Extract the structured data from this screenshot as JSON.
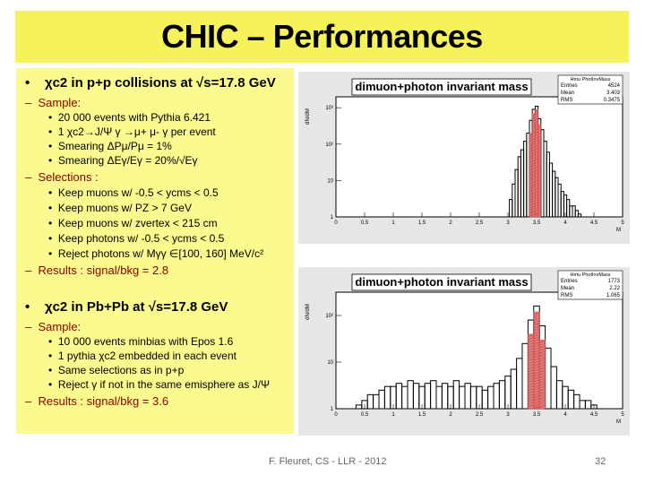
{
  "title": "CHIC – Performances",
  "pp": {
    "heading": "χc2 in p+p collisions at √s=17.8 GeV",
    "sample_label": "Sample:",
    "sample_items": [
      "20 000 events with Pythia 6.421",
      "1 χc2→J/Ψ γ →μ+ μ- γ per event",
      "Smearing ΔPμ/Pμ = 1%",
      "Smearing ΔEγ/Eγ = 20%/√Eγ"
    ],
    "selections_label": "Selections :",
    "selection_items": [
      "Keep muons w/ -0.5 < ycms < 0.5",
      "Keep muons w/ PZ > 7 GeV",
      "Keep muons w/ zvertex < 215 cm",
      "Keep photons w/ -0.5 < ycms < 0.5",
      "Reject photons w/ Mγγ ∈[100, 160] MeV/c²"
    ],
    "results": "Results : signal/bkg = 2.8"
  },
  "pbpb": {
    "heading": "χc2 in Pb+Pb at √s=17.8 GeV",
    "sample_label": "Sample:",
    "sample_items": [
      "10 000 events minbias with Epos 1.6",
      "1 pythia χc2 embedded in each event",
      "Same selections as in p+p",
      "Reject γ if not in the same emisphere as J/Ψ"
    ],
    "results": "Results : signal/bkg = 3.6"
  },
  "chart_data": [
    {
      "type": "bar",
      "title": "dimuon+photon invariant mass",
      "ylabel": "dN/dM",
      "xlabel": "M",
      "log_y": true,
      "xlim": [
        0,
        5
      ],
      "x_ticks": [
        "0",
        "0.5",
        "1",
        "1.5",
        "2",
        "2.5",
        "3",
        "3.5",
        "4",
        "4.5",
        "5"
      ],
      "y_ticks": [
        "1",
        "10",
        "10²",
        "10³"
      ],
      "stats": {
        "name": "Hmu PhotInvMass",
        "rows": [
          [
            "Entries",
            "4524"
          ],
          [
            "Mean",
            "3.403"
          ],
          [
            "RMS",
            "0.3475"
          ]
        ]
      },
      "colors": {
        "background": "#000000",
        "signal": "#e06060"
      },
      "x": [
        3.05,
        3.1,
        3.15,
        3.2,
        3.25,
        3.3,
        3.35,
        3.4,
        3.45,
        3.5,
        3.55,
        3.6,
        3.65,
        3.7,
        3.75,
        3.8,
        3.85,
        3.9,
        3.95,
        4.0,
        4.05,
        4.1,
        4.15,
        4.2,
        4.25,
        4.3,
        4.35,
        4.4
      ],
      "series": [
        {
          "values": [
            3,
            8,
            20,
            45,
            70,
            120,
            200,
            450,
            900,
            1100,
            500,
            250,
            120,
            60,
            30,
            18,
            12,
            8,
            5,
            4,
            3,
            2,
            2,
            1.5,
            1.2,
            1,
            1,
            1
          ]
        },
        {
          "values": [
            0,
            0,
            0,
            0,
            0,
            0,
            0,
            200,
            700,
            900,
            350,
            0,
            0,
            0,
            0,
            0,
            0,
            0,
            0,
            0,
            0,
            0,
            0,
            0,
            0,
            0,
            0,
            0
          ]
        }
      ]
    },
    {
      "type": "bar",
      "title": "dimuon+photon invariant mass",
      "ylabel": "dN/dM",
      "xlabel": "M",
      "log_y": true,
      "xlim": [
        0,
        5
      ],
      "x_ticks": [
        "0",
        "0.5",
        "1",
        "1.5",
        "2",
        "2.5",
        "3",
        "3.5",
        "4",
        "4.5",
        "5"
      ],
      "y_ticks": [
        "1",
        "10",
        "10²"
      ],
      "stats": {
        "name": "Hmu PhotInvMass",
        "rows": [
          [
            "Entries",
            "1773"
          ],
          [
            "Mean",
            "2.22"
          ],
          [
            "RMS",
            "1.065"
          ]
        ]
      },
      "colors": {
        "background": "#000000",
        "signal": "#e06060"
      },
      "x": [
        0.3,
        0.4,
        0.5,
        0.6,
        0.7,
        0.8,
        0.9,
        1.0,
        1.1,
        1.2,
        1.3,
        1.4,
        1.5,
        1.6,
        1.7,
        1.8,
        1.9,
        2.0,
        2.1,
        2.2,
        2.3,
        2.4,
        2.5,
        2.6,
        2.7,
        2.8,
        2.9,
        3.0,
        3.1,
        3.2,
        3.3,
        3.4,
        3.5,
        3.6,
        3.7,
        3.8,
        3.9,
        4.0,
        4.1,
        4.2,
        4.3,
        4.4,
        4.5,
        4.6,
        4.7
      ],
      "series": [
        {
          "values": [
            1,
            1.2,
            1.5,
            2,
            2,
            2.5,
            3,
            3,
            3.5,
            3,
            4,
            3.5,
            3,
            3.5,
            4,
            3,
            3.5,
            3,
            4,
            3,
            3.5,
            3,
            3,
            2.5,
            3,
            3.5,
            4,
            5,
            7,
            12,
            25,
            80,
            160,
            60,
            20,
            8,
            4,
            3,
            2.5,
            2,
            1.5,
            1.5,
            1.2,
            1,
            1
          ]
        },
        {
          "values": [
            0,
            0,
            0,
            0,
            0,
            0,
            0,
            0,
            0,
            0,
            0,
            0,
            0,
            0,
            0,
            0,
            0,
            0,
            0,
            0,
            0,
            0,
            0,
            0,
            0,
            0,
            0,
            0,
            0,
            0,
            0,
            40,
            120,
            30,
            0,
            0,
            0,
            0,
            0,
            0,
            0,
            0,
            0,
            0,
            0
          ]
        }
      ]
    }
  ],
  "footer": "F. Fleuret, CS - LLR - 2012",
  "page_number": "32"
}
